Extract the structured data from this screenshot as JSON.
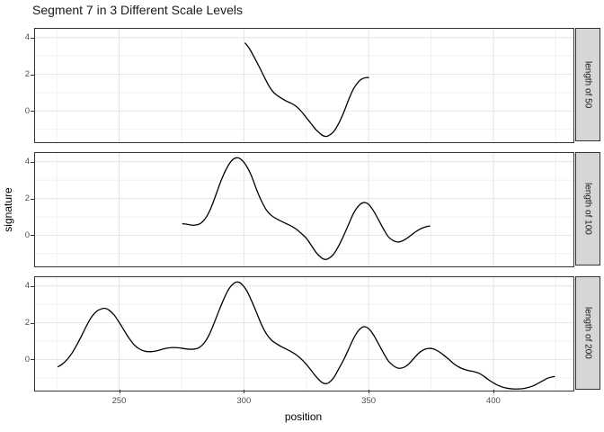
{
  "title": "Segment 7 in 3 Different Scale Levels",
  "axes": {
    "x_label": "position",
    "y_label": "signature",
    "x_ticks": [
      250,
      300,
      350,
      400
    ],
    "x_minor_ticks": [
      225,
      275,
      325,
      375,
      425
    ],
    "y_ticks": [
      4,
      2,
      0
    ],
    "y_minor_ticks": [
      3,
      1,
      -1
    ],
    "xlim": [
      216.3,
      432.1
    ],
    "ylim": [
      -1.7,
      4.48
    ],
    "grid": "on",
    "facet_strip_position": "right"
  },
  "colors": {
    "line": "#000000",
    "panel_border": "#333333",
    "grid_major": "#e4e4e4",
    "grid_minor": "#f1f1f1",
    "strip_fill": "#d6d6d6",
    "tick_label": "#4d4d4d",
    "title_text": "#1a1a1a",
    "background": "#ffffff"
  },
  "chart_data": [
    {
      "type": "line",
      "facet": "length of 50",
      "series_name": "signature",
      "points": [
        [
          300.5,
          3.7
        ],
        [
          302,
          3.45
        ],
        [
          304,
          2.97
        ],
        [
          306,
          2.45
        ],
        [
          308,
          1.9
        ],
        [
          310,
          1.38
        ],
        [
          311.5,
          1.08
        ],
        [
          313,
          0.88
        ],
        [
          315,
          0.7
        ],
        [
          317,
          0.54
        ],
        [
          319,
          0.42
        ],
        [
          321,
          0.25
        ],
        [
          323,
          -0.02
        ],
        [
          325,
          -0.35
        ],
        [
          327,
          -0.7
        ],
        [
          329,
          -1.03
        ],
        [
          331,
          -1.28
        ],
        [
          332.5,
          -1.38
        ],
        [
          334,
          -1.34
        ],
        [
          336,
          -1.12
        ],
        [
          338,
          -0.68
        ],
        [
          340,
          -0.08
        ],
        [
          342,
          0.62
        ],
        [
          344,
          1.22
        ],
        [
          346,
          1.6
        ],
        [
          347.5,
          1.76
        ],
        [
          349,
          1.82
        ],
        [
          350,
          1.82
        ]
      ]
    },
    {
      "type": "line",
      "facet": "length of 100",
      "series_name": "signature",
      "points": [
        [
          275.5,
          0.62
        ],
        [
          277,
          0.6
        ],
        [
          279,
          0.55
        ],
        [
          281,
          0.56
        ],
        [
          283,
          0.68
        ],
        [
          285,
          1.0
        ],
        [
          287,
          1.55
        ],
        [
          289,
          2.28
        ],
        [
          291,
          3.02
        ],
        [
          293,
          3.62
        ],
        [
          295,
          4.05
        ],
        [
          297,
          4.22
        ],
        [
          299,
          4.12
        ],
        [
          301,
          3.78
        ],
        [
          303,
          3.25
        ],
        [
          305,
          2.52
        ],
        [
          307,
          1.88
        ],
        [
          309,
          1.38
        ],
        [
          311,
          1.08
        ],
        [
          313,
          0.9
        ],
        [
          315,
          0.76
        ],
        [
          317,
          0.63
        ],
        [
          319,
          0.5
        ],
        [
          321,
          0.33
        ],
        [
          323,
          0.1
        ],
        [
          325,
          -0.16
        ],
        [
          327,
          -0.55
        ],
        [
          329,
          -0.95
        ],
        [
          331,
          -1.22
        ],
        [
          332.5,
          -1.32
        ],
        [
          334,
          -1.27
        ],
        [
          336,
          -1.03
        ],
        [
          338,
          -0.58
        ],
        [
          340,
          -0.02
        ],
        [
          342,
          0.6
        ],
        [
          344,
          1.2
        ],
        [
          346,
          1.6
        ],
        [
          348,
          1.78
        ],
        [
          350,
          1.68
        ],
        [
          352,
          1.32
        ],
        [
          354,
          0.83
        ],
        [
          356,
          0.33
        ],
        [
          358,
          -0.1
        ],
        [
          360,
          -0.3
        ],
        [
          361.5,
          -0.37
        ],
        [
          363,
          -0.34
        ],
        [
          365,
          -0.2
        ],
        [
          367,
          0.0
        ],
        [
          369,
          0.2
        ],
        [
          371,
          0.36
        ],
        [
          373,
          0.46
        ],
        [
          374.5,
          0.5
        ]
      ]
    },
    {
      "type": "line",
      "facet": "length of 200",
      "series_name": "signature",
      "points": [
        [
          225.5,
          -0.4
        ],
        [
          227,
          -0.28
        ],
        [
          229,
          -0.03
        ],
        [
          231,
          0.32
        ],
        [
          233,
          0.78
        ],
        [
          235,
          1.3
        ],
        [
          237,
          1.85
        ],
        [
          239,
          2.32
        ],
        [
          241,
          2.62
        ],
        [
          243,
          2.76
        ],
        [
          244.5,
          2.78
        ],
        [
          246,
          2.68
        ],
        [
          248,
          2.42
        ],
        [
          250,
          2.02
        ],
        [
          252,
          1.58
        ],
        [
          254,
          1.15
        ],
        [
          256,
          0.8
        ],
        [
          258,
          0.58
        ],
        [
          260,
          0.46
        ],
        [
          262,
          0.42
        ],
        [
          264,
          0.44
        ],
        [
          266,
          0.5
        ],
        [
          268,
          0.58
        ],
        [
          270,
          0.63
        ],
        [
          272,
          0.65
        ],
        [
          274,
          0.63
        ],
        [
          276,
          0.59
        ],
        [
          278,
          0.56
        ],
        [
          280,
          0.56
        ],
        [
          282,
          0.64
        ],
        [
          284,
          0.88
        ],
        [
          286,
          1.32
        ],
        [
          288,
          1.95
        ],
        [
          290,
          2.65
        ],
        [
          292,
          3.3
        ],
        [
          294,
          3.85
        ],
        [
          296,
          4.15
        ],
        [
          297.5,
          4.22
        ],
        [
          299,
          4.12
        ],
        [
          301,
          3.78
        ],
        [
          303,
          3.22
        ],
        [
          305,
          2.58
        ],
        [
          307,
          1.92
        ],
        [
          309,
          1.4
        ],
        [
          311,
          1.06
        ],
        [
          313,
          0.86
        ],
        [
          315,
          0.7
        ],
        [
          317,
          0.56
        ],
        [
          319,
          0.42
        ],
        [
          321,
          0.25
        ],
        [
          323,
          0.02
        ],
        [
          325,
          -0.26
        ],
        [
          327,
          -0.6
        ],
        [
          329,
          -0.95
        ],
        [
          331,
          -1.22
        ],
        [
          332.5,
          -1.32
        ],
        [
          334,
          -1.27
        ],
        [
          336,
          -1.0
        ],
        [
          338,
          -0.52
        ],
        [
          340,
          -0.02
        ],
        [
          342,
          0.56
        ],
        [
          344,
          1.15
        ],
        [
          346,
          1.58
        ],
        [
          348,
          1.78
        ],
        [
          350,
          1.68
        ],
        [
          352,
          1.33
        ],
        [
          354,
          0.84
        ],
        [
          356,
          0.34
        ],
        [
          358,
          -0.1
        ],
        [
          360,
          -0.35
        ],
        [
          362,
          -0.48
        ],
        [
          364,
          -0.44
        ],
        [
          366,
          -0.26
        ],
        [
          368,
          0.03
        ],
        [
          370,
          0.33
        ],
        [
          372,
          0.52
        ],
        [
          374,
          0.6
        ],
        [
          376,
          0.57
        ],
        [
          378,
          0.44
        ],
        [
          380,
          0.24
        ],
        [
          382,
          0.02
        ],
        [
          384,
          -0.22
        ],
        [
          386,
          -0.4
        ],
        [
          388,
          -0.53
        ],
        [
          390,
          -0.61
        ],
        [
          392,
          -0.66
        ],
        [
          394,
          -0.74
        ],
        [
          396,
          -0.9
        ],
        [
          398,
          -1.1
        ],
        [
          400,
          -1.28
        ],
        [
          402,
          -1.42
        ],
        [
          404,
          -1.52
        ],
        [
          406,
          -1.58
        ],
        [
          408,
          -1.61
        ],
        [
          410,
          -1.61
        ],
        [
          412,
          -1.59
        ],
        [
          414,
          -1.53
        ],
        [
          416,
          -1.44
        ],
        [
          418,
          -1.3
        ],
        [
          420,
          -1.15
        ],
        [
          422,
          -1.01
        ],
        [
          424,
          -0.94
        ],
        [
          424.5,
          -0.94
        ]
      ]
    }
  ]
}
